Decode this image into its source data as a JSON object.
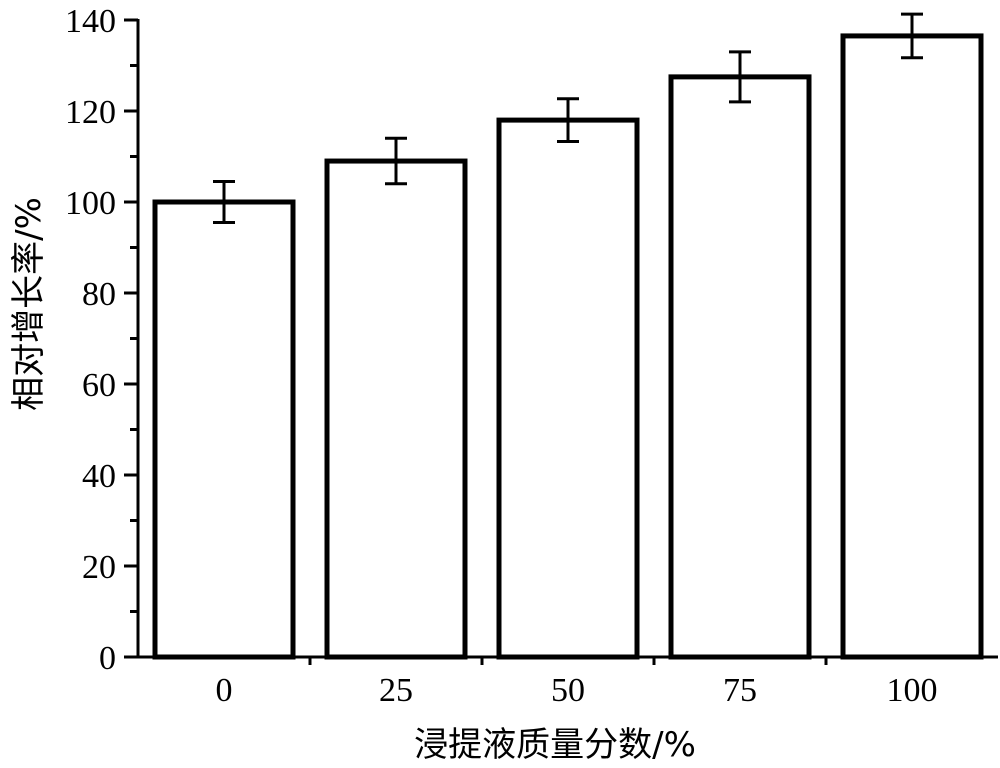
{
  "chart_data": {
    "type": "bar",
    "categories": [
      "0",
      "25",
      "50",
      "75",
      "100"
    ],
    "values": [
      100,
      109,
      118,
      127.5,
      136.5
    ],
    "error": [
      4.5,
      5,
      4.7,
      5.5,
      4.8
    ],
    "xlabel": "浸提液质量分数/%",
    "ylabel": "相对增长率/%",
    "ylim": [
      0,
      140
    ],
    "yticks": [
      0,
      20,
      40,
      60,
      80,
      100,
      120,
      140
    ],
    "ytick_labels": [
      "0",
      "20",
      "40",
      "60",
      "80",
      "100",
      "120",
      "140"
    ],
    "grid": false,
    "legend": "none",
    "colors": {
      "bar_fill": "#ffffff",
      "stroke": "#000000"
    }
  }
}
